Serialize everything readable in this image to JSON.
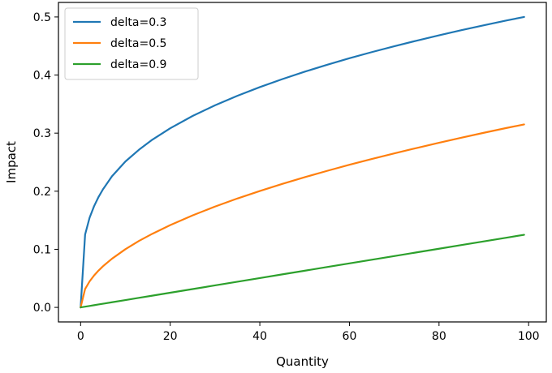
{
  "chart_data": {
    "type": "line",
    "title": "",
    "xlabel": "Quantity",
    "ylabel": "Impact",
    "xlim": [
      -4.95,
      103.95
    ],
    "ylim": [
      -0.025,
      0.525
    ],
    "xticks": [
      0,
      20,
      40,
      60,
      80,
      100
    ],
    "yticks": [
      0.0,
      0.1,
      0.2,
      0.3,
      0.4,
      0.5
    ],
    "xtick_labels": [
      "0",
      "20",
      "40",
      "60",
      "80",
      "100"
    ],
    "ytick_labels": [
      "0.0",
      "0.1",
      "0.2",
      "0.3",
      "0.4",
      "0.5"
    ],
    "grid": false,
    "legend_position": "upper-left",
    "x": [
      0,
      1,
      2,
      3,
      4,
      5,
      7,
      10,
      13,
      16,
      20,
      25,
      30,
      35,
      40,
      45,
      50,
      55,
      60,
      65,
      70,
      75,
      80,
      85,
      90,
      95,
      99
    ],
    "series": [
      {
        "name": "delta=0.3",
        "color": "#1f77b4",
        "values": [
          0.0,
          0.1254,
          0.1544,
          0.1742,
          0.1901,
          0.2034,
          0.2257,
          0.2512,
          0.2712,
          0.2887,
          0.3084,
          0.3296,
          0.3479,
          0.3643,
          0.3792,
          0.3929,
          0.4057,
          0.4176,
          0.4289,
          0.4395,
          0.4496,
          0.4592,
          0.4684,
          0.4772,
          0.4856,
          0.4938,
          0.5
        ]
      },
      {
        "name": "delta=0.5",
        "color": "#ff7f0e",
        "values": [
          0.0,
          0.0317,
          0.0448,
          0.0549,
          0.0634,
          0.0709,
          0.0838,
          0.1002,
          0.1143,
          0.1267,
          0.1417,
          0.1584,
          0.1736,
          0.1875,
          0.2004,
          0.2126,
          0.2241,
          0.235,
          0.2455,
          0.2555,
          0.2651,
          0.2744,
          0.2834,
          0.2921,
          0.3006,
          0.3088,
          0.315
        ]
      },
      {
        "name": "delta=0.9",
        "color": "#2ca02c",
        "values": [
          0.0,
          0.00126,
          0.00252,
          0.00379,
          0.00505,
          0.00631,
          0.00884,
          0.01263,
          0.01641,
          0.0202,
          0.02525,
          0.03157,
          0.03788,
          0.04419,
          0.05051,
          0.05682,
          0.06313,
          0.06944,
          0.07576,
          0.08207,
          0.08838,
          0.0947,
          0.10101,
          0.10732,
          0.11364,
          0.11995,
          0.125
        ]
      }
    ]
  }
}
